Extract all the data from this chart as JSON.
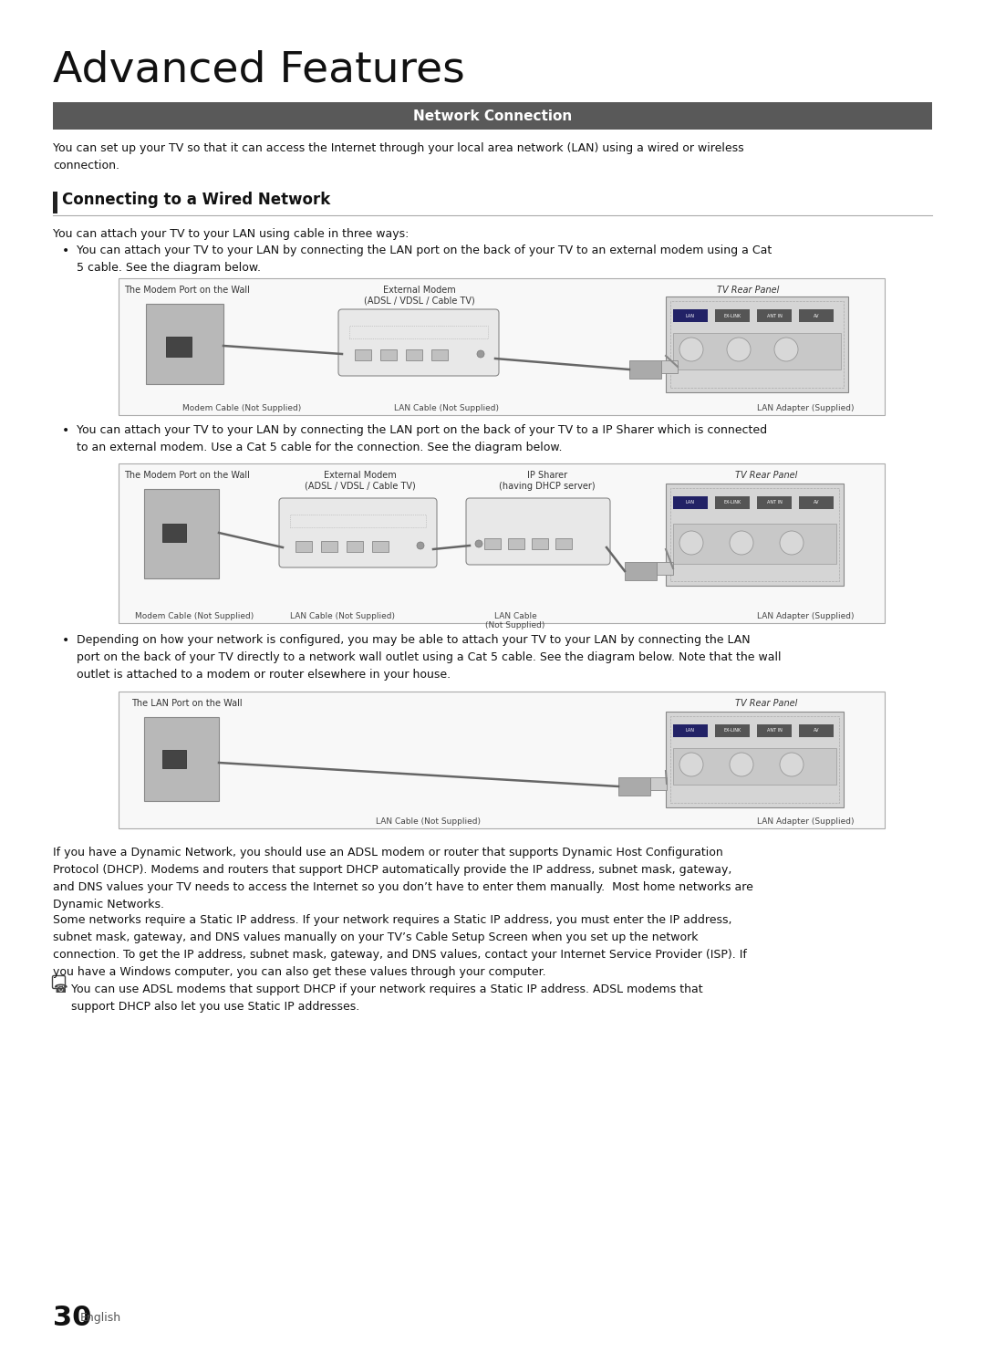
{
  "page_bg": "#ffffff",
  "title": "Advanced Features",
  "section_header_bg": "#595959",
  "section_header_text": "Network Connection",
  "section_header_color": "#ffffff",
  "subsection_title": "Connecting to a Wired Network",
  "subsection_bar_color": "#222222",
  "intro_text": "You can set up your TV so that it can access the Internet through your local area network (LAN) using a wired or wireless\nconnection.",
  "bullet_intro": "You can attach your TV to your LAN using cable in three ways:",
  "bullets": [
    "You can attach your TV to your LAN by connecting the LAN port on the back of your TV to an external modem using a Cat\n5 cable. See the diagram below.",
    "You can attach your TV to your LAN by connecting the LAN port on the back of your TV to a IP Sharer which is connected\nto an external modem. Use a Cat 5 cable for the connection. See the diagram below.",
    "Depending on how your network is configured, you may be able to attach your TV to your LAN by connecting the LAN\nport on the back of your TV directly to a network wall outlet using a Cat 5 cable. See the diagram below. Note that the wall\noutlet is attached to a modem or router elsewhere in your house."
  ],
  "diagram1": {
    "label_left": "The Modem Port on the Wall",
    "label_center": "External Modem\n(ADSL / VDSL / Cable TV)",
    "label_right": "TV Rear Panel",
    "label_bottom_left": "Modem Cable (Not Supplied)",
    "label_bottom_center": "LAN Cable (Not Supplied)",
    "label_bottom_right": "LAN Adapter (Supplied)"
  },
  "diagram2": {
    "label_left": "The Modem Port on the Wall",
    "label_center_left": "External Modem\n(ADSL / VDSL / Cable TV)",
    "label_center_right": "IP Sharer\n(having DHCP server)",
    "label_right": "TV Rear Panel",
    "label_bottom_left": "Modem Cable (Not Supplied)",
    "label_bottom_center": "LAN Cable (Not Supplied)",
    "label_bottom_right_top": "LAN Cable",
    "label_bottom_right_bot": "(Not Supplied)",
    "label_adapter": "LAN Adapter (Supplied)"
  },
  "diagram3": {
    "label_left": "The LAN Port on the Wall",
    "label_right": "TV Rear Panel",
    "label_bottom_center": "LAN Cable (Not Supplied)",
    "label_bottom_right": "LAN Adapter (Supplied)"
  },
  "footer_paragraphs": [
    "If you have a Dynamic Network, you should use an ADSL modem or router that supports Dynamic Host Configuration\nProtocol (DHCP). Modems and routers that support DHCP automatically provide the IP address, subnet mask, gateway,\nand DNS values your TV needs to access the Internet so you don’t have to enter them manually.  Most home networks are\nDynamic Networks.",
    "Some networks require a Static IP address. If your network requires a Static IP address, you must enter the IP address,\nsubnet mask, gateway, and DNS values manually on your TV’s Cable Setup Screen when you set up the network\nconnection. To get the IP address, subnet mask, gateway, and DNS values, contact your Internet Service Provider (ISP). If\nyou have a Windows computer, you can also get these values through your computer."
  ],
  "note_text": "You can use ADSL modems that support DHCP if your network requires a Static IP address. ADSL modems that\nsupport DHCP also let you use Static IP addresses.",
  "page_number": "30",
  "page_number_suffix": "English",
  "diagram_bg": "#f8f8f8",
  "diagram_border": "#aaaaaa"
}
